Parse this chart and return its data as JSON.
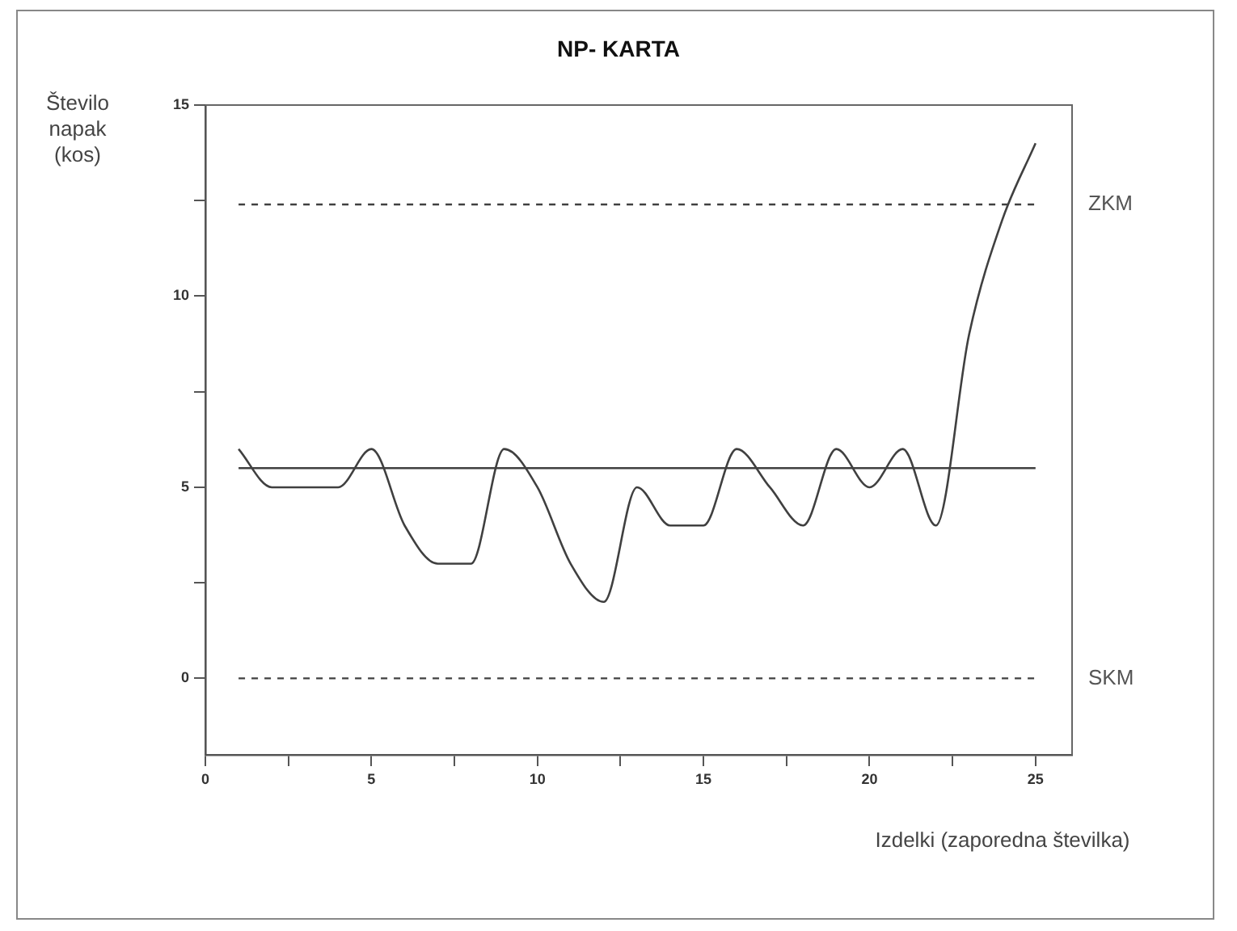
{
  "chart_data": {
    "type": "line",
    "title": "NP- KARTA",
    "xlabel": "Izdelki (zaporedna številka)",
    "ylabel": "Število napak (kos)",
    "x": [
      1,
      2,
      3,
      4,
      5,
      6,
      7,
      8,
      9,
      10,
      11,
      12,
      13,
      14,
      15,
      16,
      17,
      18,
      19,
      20,
      21,
      22,
      23,
      24,
      25
    ],
    "series": [
      {
        "color": "#404040",
        "values": [
          6,
          5,
          5,
          5,
          6,
          4,
          3,
          3,
          6,
          5,
          3,
          2,
          5,
          4,
          4,
          6,
          5,
          4,
          6,
          5,
          6,
          4,
          9,
          12,
          14
        ]
      }
    ],
    "xlim": [
      0,
      26.1
    ],
    "ylim": [
      -2,
      15
    ],
    "xticks": [
      0,
      {
        "value": 2.5,
        "label": null
      },
      5,
      {
        "value": 7.5,
        "label": null
      },
      10,
      {
        "value": 12.5,
        "label": null
      },
      15,
      {
        "value": 17.5,
        "label": null
      },
      20,
      {
        "value": 22.5,
        "label": null
      },
      25
    ],
    "yticks": [
      0,
      {
        "value": 2.5,
        "label": null
      },
      5,
      {
        "value": 7.5,
        "label": null
      },
      10,
      {
        "value": 12.5,
        "label": null
      },
      15
    ],
    "ref_lines": [
      {
        "axis": "y",
        "value": 12.4,
        "label": "ZKM",
        "line_style": "dashed",
        "color": "#404040"
      },
      {
        "axis": "y",
        "value": 5.5,
        "label": null,
        "line_style": "solid",
        "color": "#404040"
      },
      {
        "axis": "y",
        "value": 0,
        "label": "SKM",
        "line_style": "dashed",
        "color": "#404040"
      }
    ],
    "grid": false,
    "legend": false,
    "marker": "none",
    "line_style": "solid"
  }
}
